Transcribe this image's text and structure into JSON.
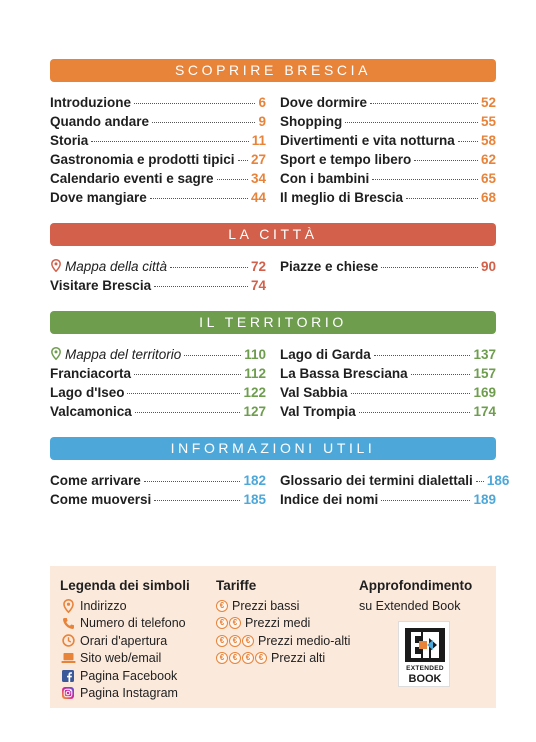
{
  "colors": {
    "orange": "#e8833a",
    "red": "#d2604a",
    "green": "#6e9d4e",
    "blue": "#4da7d8",
    "legend_bg": "#fbe9dc"
  },
  "sections": [
    {
      "title": "SCOPRIRE BRESCIA",
      "left": [
        {
          "label": "Introduzione",
          "page": "6"
        },
        {
          "label": "Quando andare",
          "page": "9"
        },
        {
          "label": "Storia",
          "page": "11"
        },
        {
          "label": "Gastronomia e prodotti tipici",
          "page": "27"
        },
        {
          "label": "Calendario eventi e sagre",
          "page": "34"
        },
        {
          "label": "Dove mangiare",
          "page": "44"
        }
      ],
      "right": [
        {
          "label": "Dove dormire",
          "page": "52"
        },
        {
          "label": "Shopping",
          "page": "55"
        },
        {
          "label": "Divertimenti e vita notturna",
          "page": "58"
        },
        {
          "label": "Sport e tempo libero",
          "page": "62"
        },
        {
          "label": "Con i bambini",
          "page": "65"
        },
        {
          "label": "Il meglio di Brescia",
          "page": "68"
        }
      ]
    },
    {
      "title": "LA CITTÀ",
      "left": [
        {
          "label": "Mappa della città",
          "page": "72",
          "map": true
        },
        {
          "label": "Visitare Brescia",
          "page": "74"
        }
      ],
      "right": [
        {
          "label": "Piazze e chiese",
          "page": "90"
        }
      ]
    },
    {
      "title": "IL TERRITORIO",
      "left": [
        {
          "label": "Mappa del territorio",
          "page": "110",
          "map": true
        },
        {
          "label": "Franciacorta",
          "page": "112"
        },
        {
          "label": "Lago d'Iseo",
          "page": "122"
        },
        {
          "label": "Valcamonica",
          "page": "127"
        }
      ],
      "right": [
        {
          "label": "Lago di Garda",
          "page": "137"
        },
        {
          "label": "La Bassa Bresciana",
          "page": "157"
        },
        {
          "label": "Val Sabbia",
          "page": "169"
        },
        {
          "label": "Val Trompia",
          "page": "174"
        }
      ]
    },
    {
      "title": "INFORMAZIONI UTILI",
      "left": [
        {
          "label": "Come arrivare",
          "page": "182"
        },
        {
          "label": "Come muoversi",
          "page": "185"
        }
      ],
      "right": [
        {
          "label": "Glossario dei termini dialettali",
          "page": "186"
        },
        {
          "label": "Indice dei nomi",
          "page": "189"
        }
      ]
    }
  ],
  "legend": {
    "symbols_title": "Legenda dei simboli",
    "symbols": [
      {
        "icon": "map-pin-icon",
        "label": "Indirizzo"
      },
      {
        "icon": "phone-icon",
        "label": "Numero di telefono"
      },
      {
        "icon": "clock-icon",
        "label": "Orari d'apertura"
      },
      {
        "icon": "laptop-icon",
        "label": "Sito web/email"
      },
      {
        "icon": "facebook-icon",
        "label": "Pagina Facebook"
      },
      {
        "icon": "instagram-icon",
        "label": "Pagina Instagram"
      }
    ],
    "prices_title": "Tariffe",
    "prices": [
      {
        "coins": 1,
        "label": "Prezzi bassi"
      },
      {
        "coins": 2,
        "label": "Prezzi medi"
      },
      {
        "coins": 3,
        "label": "Prezzi medio-alti"
      },
      {
        "coins": 4,
        "label": "Prezzi alti"
      }
    ],
    "coin_symbol": "€",
    "extra_title": "Approfondimento",
    "extra_subtitle": "su Extended Book",
    "logo_text_1": "EXTENDED",
    "logo_text_2": "BOOK"
  }
}
